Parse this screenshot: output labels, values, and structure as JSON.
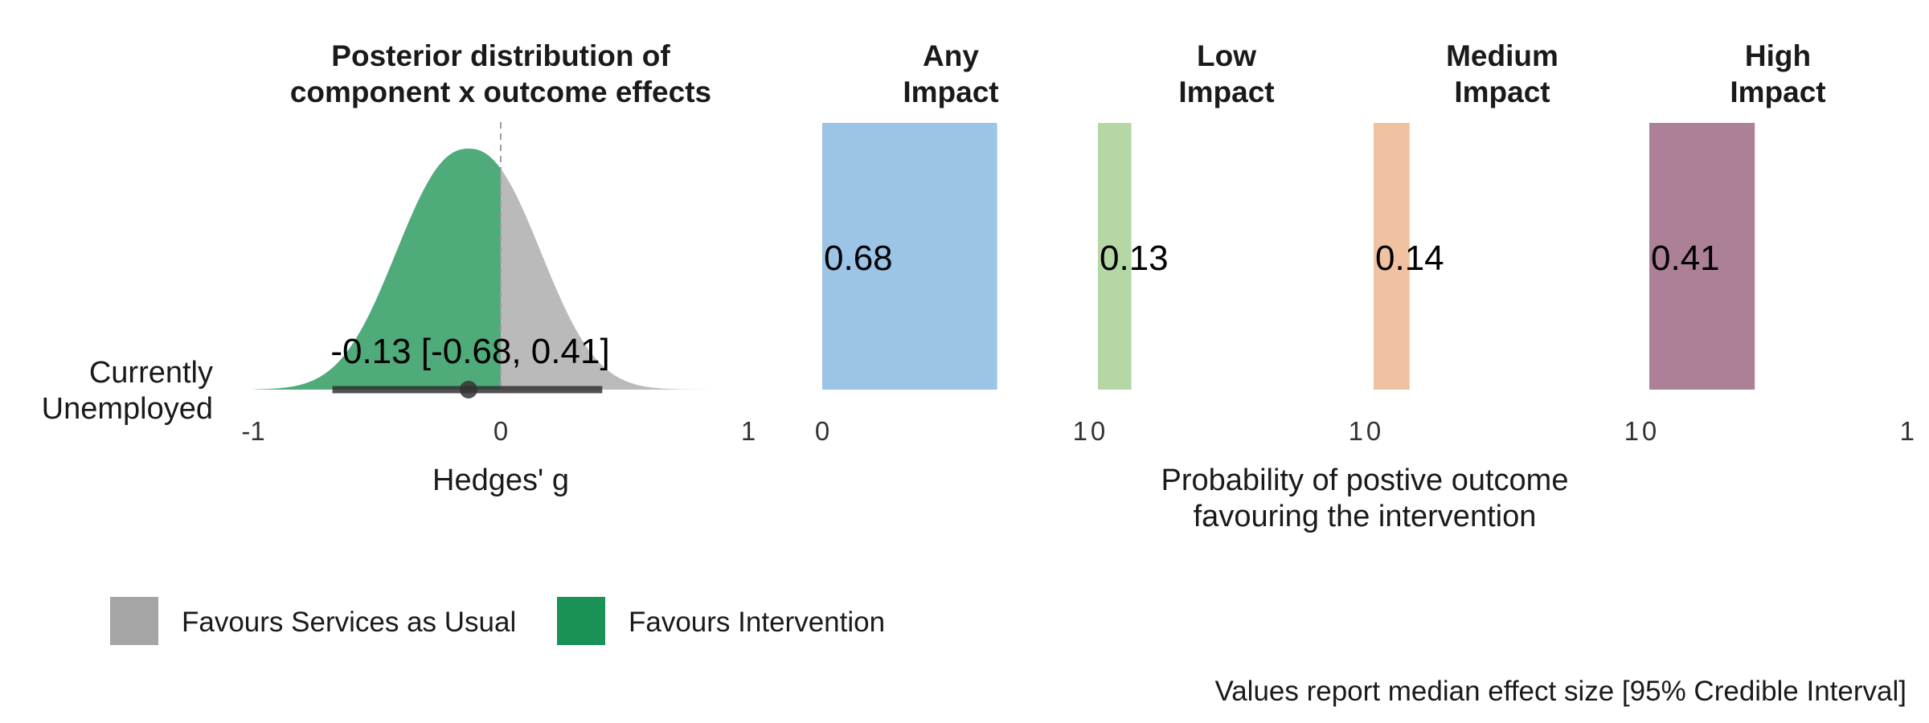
{
  "chart_data": [
    {
      "type": "area",
      "title": [
        "Posterior distribution of",
        "component x outcome effects"
      ],
      "xlabel": "Hedges' g",
      "row_label": [
        "Currently",
        "Unemployed"
      ],
      "xlim": [
        -1,
        1
      ],
      "x_ticks": [
        "-1",
        "0",
        "1"
      ],
      "reference_line": 0,
      "distribution": {
        "median": -0.13,
        "ci_lower": -0.68,
        "ci_upper": 0.41,
        "favour_intervention_color": "#4FAB7A",
        "favour_usual_color": "#BBBABA",
        "interval_color": "#333333"
      },
      "annotation": "-0.13 [-0.68, 0.41]"
    },
    {
      "type": "bar",
      "xlabel": [
        "Probability of postive outcome",
        "favouring the intervention"
      ],
      "xlim": [
        0,
        1
      ],
      "panels": [
        {
          "title": [
            "Any",
            "Impact"
          ],
          "value": 0.68,
          "label": "0.68",
          "color": "#9BC4E6",
          "ticks": [
            "0",
            "1"
          ]
        },
        {
          "title": [
            "Low",
            "Impact"
          ],
          "value": 0.13,
          "label": "0.13",
          "color": "#B5D7A5",
          "ticks": [
            "0",
            "1"
          ]
        },
        {
          "title": [
            "Medium",
            "Impact"
          ],
          "value": 0.14,
          "label": "0.14",
          "color": "#F0C2A2",
          "ticks": [
            "0",
            "1"
          ]
        },
        {
          "title": [
            "High",
            "Impact"
          ],
          "value": 0.41,
          "label": "0.41",
          "color": "#AC8097",
          "ticks": [
            "0",
            "1"
          ]
        }
      ]
    }
  ],
  "legend": [
    {
      "label": "Favours Services as Usual",
      "color": "#A6A5A6"
    },
    {
      "label": "Favours Intervention",
      "color": "#1A9157"
    }
  ],
  "caption": "Values report median effect size [95% Credible Interval]"
}
